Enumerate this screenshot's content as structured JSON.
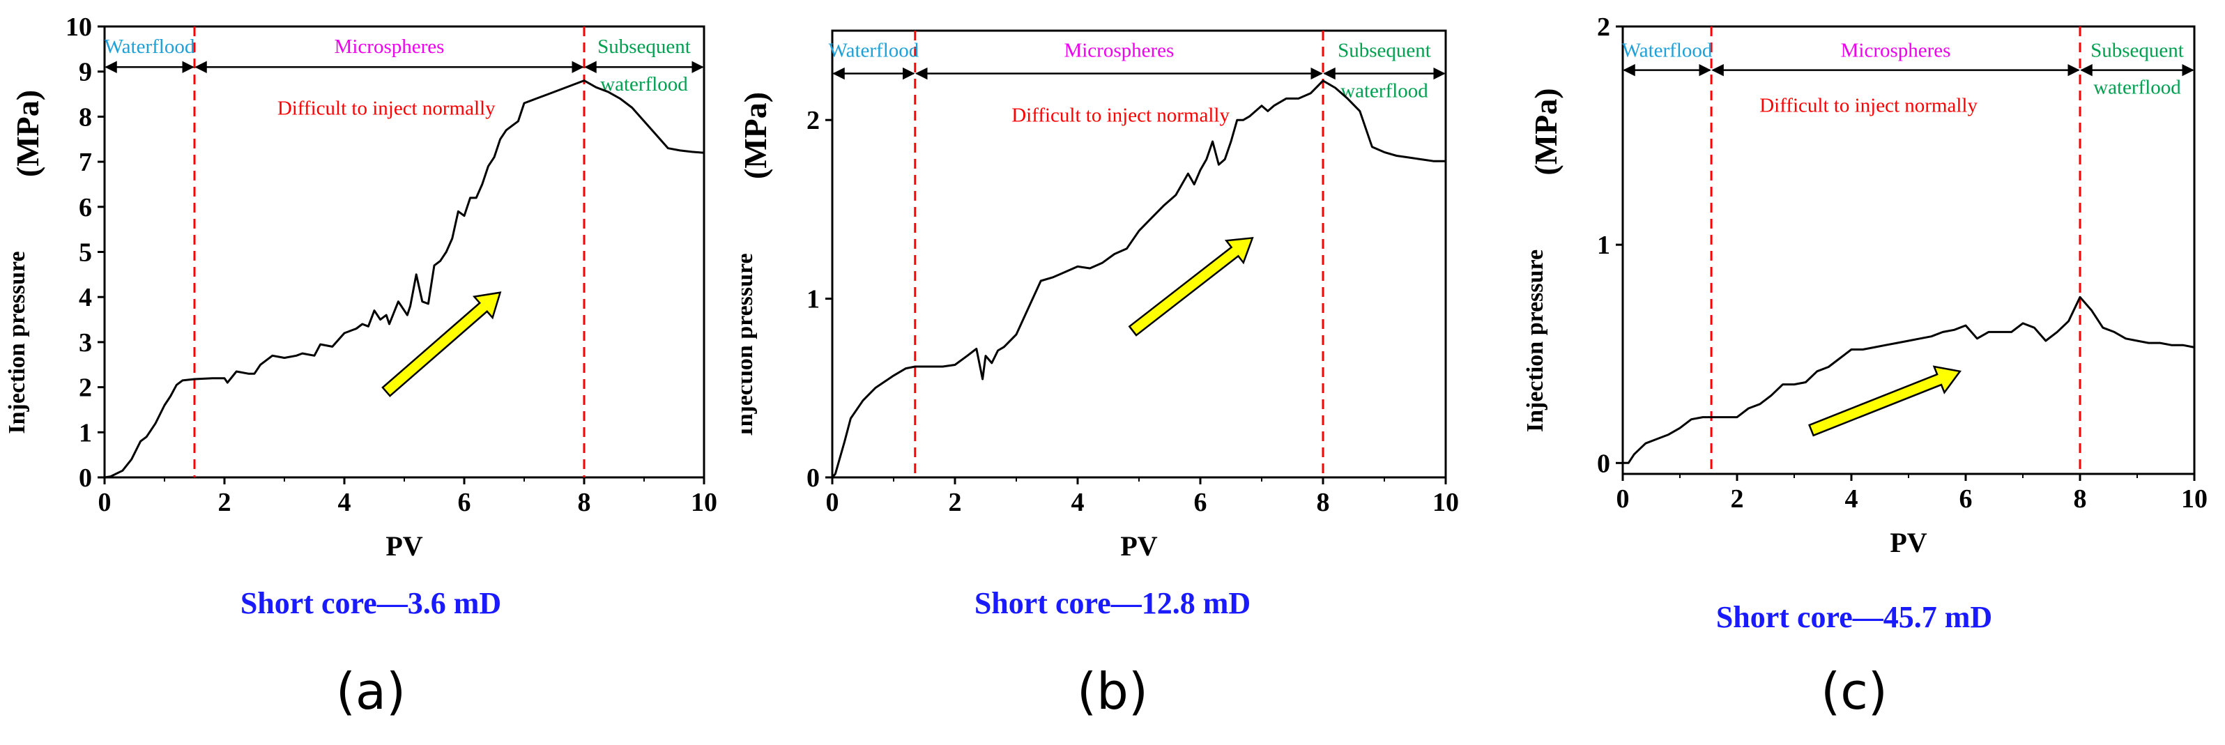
{
  "colors": {
    "waterflood": "#1ea0d8",
    "microspheres": "#ee00ee",
    "subsequent": "#00a050",
    "note": "#ff0000",
    "caption": "#1a1aff",
    "arrow_fill": "#ffff00",
    "line": "#000000"
  },
  "chart_data": [
    {
      "type": "line",
      "panel_letter": "(a)",
      "caption": "Short core—3.6 mD",
      "xlabel": "PV",
      "ylabel_main": "Injection pressure",
      "ylabel_unit": "(MPa)",
      "xlim": [
        0,
        10
      ],
      "ylim": [
        0,
        10
      ],
      "xticks": [
        "0",
        "2",
        "4",
        "6",
        "8",
        "10"
      ],
      "xtick_values": [
        0,
        2,
        4,
        6,
        8,
        10
      ],
      "yticks": [
        "0",
        "1",
        "2",
        "3",
        "4",
        "5",
        "6",
        "7",
        "8",
        "9",
        "10"
      ],
      "ytick_values": [
        0,
        1,
        2,
        3,
        4,
        5,
        6,
        7,
        8,
        9,
        10
      ],
      "phase_boundaries": [
        1.5,
        8.0
      ],
      "phases": [
        {
          "label": "Waterflood",
          "x_from": 0,
          "x_to": 1.5,
          "color_key": "waterflood"
        },
        {
          "label": "Microspheres",
          "x_from": 1.5,
          "x_to": 8.0,
          "color_key": "microspheres"
        },
        {
          "label": "Subsequent",
          "label2": "waterflood",
          "x_from": 8.0,
          "x_to": 10,
          "color_key": "subsequent"
        }
      ],
      "phase_arrow_y": 9.1,
      "phase_label_y": 9.6,
      "note": "Difficult to inject normally",
      "note_x": 4.7,
      "note_y": 8.2,
      "trend_arrow": {
        "from": [
          4.7,
          1.9
        ],
        "to": [
          6.6,
          4.1
        ]
      },
      "series": [
        {
          "name": "Injection pressure",
          "x": [
            0,
            0.1,
            0.3,
            0.45,
            0.6,
            0.7,
            0.85,
            1.0,
            1.1,
            1.2,
            1.3,
            1.5,
            1.8,
            2.0,
            2.05,
            2.2,
            2.4,
            2.5,
            2.6,
            2.8,
            3.0,
            3.2,
            3.3,
            3.5,
            3.6,
            3.8,
            4.0,
            4.2,
            4.3,
            4.4,
            4.5,
            4.6,
            4.7,
            4.75,
            4.9,
            5.0,
            5.05,
            5.1,
            5.2,
            5.3,
            5.4,
            5.5,
            5.6,
            5.7,
            5.8,
            5.9,
            6.0,
            6.1,
            6.2,
            6.3,
            6.35,
            6.4,
            6.5,
            6.6,
            6.7,
            6.8,
            6.9,
            7.0,
            7.2,
            7.4,
            7.6,
            7.8,
            8.0,
            8.2,
            8.4,
            8.6,
            8.8,
            9.0,
            9.2,
            9.4,
            9.6,
            9.8,
            10.0
          ],
          "y": [
            0,
            0.02,
            0.15,
            0.4,
            0.8,
            0.9,
            1.2,
            1.6,
            1.8,
            2.05,
            2.15,
            2.18,
            2.2,
            2.2,
            2.1,
            2.35,
            2.3,
            2.3,
            2.5,
            2.7,
            2.65,
            2.7,
            2.75,
            2.7,
            2.95,
            2.9,
            3.2,
            3.3,
            3.4,
            3.35,
            3.7,
            3.5,
            3.6,
            3.4,
            3.9,
            3.7,
            3.6,
            3.8,
            4.5,
            3.9,
            3.85,
            4.7,
            4.8,
            5.0,
            5.3,
            5.9,
            5.8,
            6.2,
            6.2,
            6.5,
            6.7,
            6.9,
            7.1,
            7.5,
            7.7,
            7.8,
            7.9,
            8.3,
            8.4,
            8.5,
            8.6,
            8.7,
            8.8,
            8.65,
            8.55,
            8.4,
            8.2,
            7.9,
            7.6,
            7.3,
            7.25,
            7.22,
            7.2
          ]
        }
      ]
    },
    {
      "type": "line",
      "panel_letter": "(b)",
      "caption": "Short core—12.8 mD",
      "xlabel": "PV",
      "ylabel_main": "Injection pressure",
      "ylabel_unit": "(MPa)",
      "xlim": [
        0,
        10
      ],
      "ylim": [
        0,
        2.5
      ],
      "xticks": [
        "0",
        "2",
        "4",
        "6",
        "8",
        "10"
      ],
      "xtick_values": [
        0,
        2,
        4,
        6,
        8,
        10
      ],
      "yticks": [
        "0",
        "1",
        "2"
      ],
      "ytick_values": [
        0,
        1,
        2
      ],
      "phase_boundaries": [
        1.35,
        8.0
      ],
      "phases": [
        {
          "label": "Waterflood",
          "x_from": 0,
          "x_to": 1.35,
          "color_key": "waterflood"
        },
        {
          "label": "Microspheres",
          "x_from": 1.35,
          "x_to": 8.0,
          "color_key": "microspheres"
        },
        {
          "label": "Subsequent",
          "label2": "waterflood",
          "x_from": 8.0,
          "x_to": 10,
          "color_key": "subsequent"
        }
      ],
      "phase_arrow_y": 2.26,
      "phase_label_y": 2.4,
      "note": "Difficult to inject normally",
      "note_x": 4.7,
      "note_y": 2.03,
      "trend_arrow": {
        "from": [
          4.9,
          0.82
        ],
        "to": [
          6.85,
          1.34
        ]
      },
      "series": [
        {
          "name": "Injection pressure",
          "x": [
            0,
            0.05,
            0.1,
            0.2,
            0.3,
            0.5,
            0.7,
            1.0,
            1.2,
            1.35,
            1.8,
            2.0,
            2.2,
            2.35,
            2.45,
            2.5,
            2.6,
            2.7,
            2.8,
            3.0,
            3.2,
            3.4,
            3.6,
            3.8,
            4.0,
            4.2,
            4.4,
            4.6,
            4.8,
            5.0,
            5.2,
            5.4,
            5.6,
            5.8,
            5.9,
            6.0,
            6.1,
            6.2,
            6.3,
            6.4,
            6.5,
            6.6,
            6.7,
            6.8,
            7.0,
            7.1,
            7.2,
            7.3,
            7.4,
            7.6,
            7.8,
            8.0,
            8.2,
            8.4,
            8.6,
            8.8,
            9.0,
            9.2,
            9.4,
            9.6,
            9.8,
            10.0
          ],
          "y": [
            0,
            0.02,
            0.08,
            0.2,
            0.33,
            0.43,
            0.5,
            0.57,
            0.61,
            0.62,
            0.62,
            0.63,
            0.68,
            0.72,
            0.55,
            0.68,
            0.64,
            0.71,
            0.73,
            0.8,
            0.95,
            1.1,
            1.12,
            1.15,
            1.18,
            1.17,
            1.2,
            1.25,
            1.28,
            1.38,
            1.45,
            1.52,
            1.58,
            1.7,
            1.64,
            1.72,
            1.78,
            1.88,
            1.75,
            1.78,
            1.88,
            2.0,
            2.0,
            2.02,
            2.08,
            2.05,
            2.08,
            2.1,
            2.12,
            2.12,
            2.15,
            2.22,
            2.18,
            2.12,
            2.05,
            1.85,
            1.82,
            1.8,
            1.79,
            1.78,
            1.77,
            1.77
          ]
        }
      ]
    },
    {
      "type": "line",
      "panel_letter": "(c)",
      "caption": "Short core—45.7 mD",
      "xlabel": "PV",
      "ylabel_main": "Injection pressure",
      "ylabel_unit": "(MPa)",
      "xlim": [
        0,
        10
      ],
      "ylim": [
        -0.05,
        2.0
      ],
      "xticks": [
        "0",
        "2",
        "4",
        "6",
        "8",
        "10"
      ],
      "xtick_values": [
        0,
        2,
        4,
        6,
        8,
        10
      ],
      "yticks": [
        "0",
        "1",
        "2"
      ],
      "ytick_values": [
        0,
        1,
        2
      ],
      "phase_boundaries": [
        1.55,
        8.0
      ],
      "phases": [
        {
          "label": "Waterflood",
          "x_from": 0,
          "x_to": 1.55,
          "color_key": "waterflood"
        },
        {
          "label": "Microspheres",
          "x_from": 1.55,
          "x_to": 8.0,
          "color_key": "microspheres"
        },
        {
          "label": "Subsequent",
          "label2": "waterflood",
          "x_from": 8.0,
          "x_to": 10,
          "color_key": "subsequent"
        }
      ],
      "phase_arrow_y": 1.8,
      "phase_label_y": 1.9,
      "note": "Difficult to inject normally",
      "note_x": 4.3,
      "note_y": 1.64,
      "trend_arrow": {
        "from": [
          3.3,
          0.15
        ],
        "to": [
          5.9,
          0.42
        ]
      },
      "series": [
        {
          "name": "Injection pressure",
          "x": [
            0,
            0.1,
            0.2,
            0.4,
            0.6,
            0.8,
            1.0,
            1.2,
            1.4,
            1.55,
            1.8,
            2.0,
            2.2,
            2.4,
            2.6,
            2.8,
            3.0,
            3.2,
            3.4,
            3.6,
            3.8,
            4.0,
            4.2,
            4.4,
            4.6,
            4.8,
            5.0,
            5.2,
            5.4,
            5.6,
            5.8,
            6.0,
            6.2,
            6.4,
            6.6,
            6.8,
            7.0,
            7.2,
            7.4,
            7.6,
            7.8,
            8.0,
            8.2,
            8.4,
            8.6,
            8.8,
            9.0,
            9.2,
            9.4,
            9.6,
            9.8,
            10.0
          ],
          "y": [
            0,
            0.0,
            0.04,
            0.09,
            0.11,
            0.13,
            0.16,
            0.2,
            0.21,
            0.21,
            0.21,
            0.21,
            0.25,
            0.27,
            0.31,
            0.36,
            0.36,
            0.37,
            0.42,
            0.44,
            0.48,
            0.52,
            0.52,
            0.53,
            0.54,
            0.55,
            0.56,
            0.57,
            0.58,
            0.6,
            0.61,
            0.63,
            0.57,
            0.6,
            0.6,
            0.6,
            0.64,
            0.62,
            0.56,
            0.6,
            0.65,
            0.76,
            0.7,
            0.62,
            0.6,
            0.57,
            0.56,
            0.55,
            0.55,
            0.54,
            0.54,
            0.53
          ]
        }
      ]
    }
  ]
}
